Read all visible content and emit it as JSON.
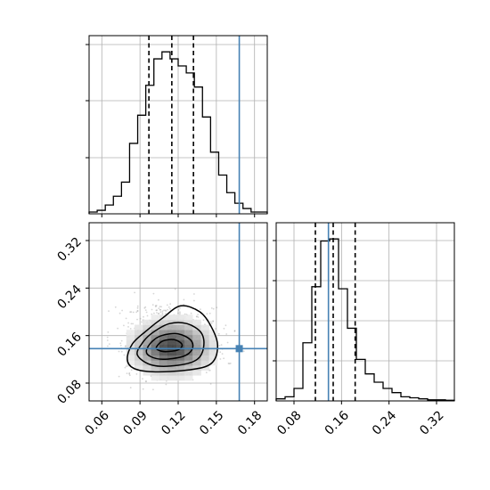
{
  "chart_data": {
    "type": "corner",
    "colors": {
      "truth": "#4682b4",
      "line": "#000000",
      "points": "#8a8a8a"
    },
    "truths": {
      "p0": 0.168,
      "p1": 0.138
    },
    "quantiles": {
      "p0": [
        0.097,
        0.115,
        0.132
      ],
      "p1": [
        0.116,
        0.146,
        0.183
      ]
    },
    "ticks": {
      "p0": [
        "0.06",
        "0.09",
        "0.12",
        "0.15",
        "0.18"
      ],
      "p1": [
        "0.08",
        "0.16",
        "0.24",
        "0.32"
      ]
    },
    "hist_p0": {
      "range": [
        0.05,
        0.19
      ],
      "counts": [
        1,
        2,
        5,
        10,
        18,
        40,
        56,
        73,
        88,
        92,
        88,
        84,
        80,
        72,
        55,
        35,
        22,
        12,
        6,
        3,
        1,
        1
      ]
    },
    "hist_p1": {
      "range": [
        0.05,
        0.35
      ],
      "counts": [
        1,
        2,
        6,
        28,
        55,
        77,
        78,
        54,
        35,
        20,
        13,
        9,
        6,
        4,
        2,
        1.5,
        1,
        0.5,
        0.5,
        0.3
      ]
    },
    "density": {
      "center": [
        0.115,
        0.14
      ],
      "contours": [
        [
          [
            0.08,
            0.12
          ],
          [
            0.084,
            0.146
          ],
          [
            0.095,
            0.168
          ],
          [
            0.108,
            0.19
          ],
          [
            0.122,
            0.21
          ],
          [
            0.137,
            0.2
          ],
          [
            0.146,
            0.175
          ],
          [
            0.151,
            0.143
          ],
          [
            0.146,
            0.113
          ],
          [
            0.128,
            0.102
          ],
          [
            0.1,
            0.099
          ],
          [
            0.085,
            0.105
          ]
        ],
        [
          [
            0.088,
            0.127
          ],
          [
            0.092,
            0.148
          ],
          [
            0.1,
            0.165
          ],
          [
            0.113,
            0.18
          ],
          [
            0.127,
            0.18
          ],
          [
            0.138,
            0.165
          ],
          [
            0.14,
            0.141
          ],
          [
            0.135,
            0.12
          ],
          [
            0.12,
            0.11
          ],
          [
            0.1,
            0.11
          ]
        ],
        [
          [
            0.095,
            0.134
          ],
          [
            0.099,
            0.149
          ],
          [
            0.107,
            0.16
          ],
          [
            0.12,
            0.163
          ],
          [
            0.13,
            0.152
          ],
          [
            0.131,
            0.137
          ],
          [
            0.124,
            0.125
          ],
          [
            0.108,
            0.12
          ],
          [
            0.098,
            0.125
          ]
        ],
        [
          [
            0.103,
            0.141
          ],
          [
            0.108,
            0.151
          ],
          [
            0.117,
            0.153
          ],
          [
            0.123,
            0.145
          ],
          [
            0.12,
            0.136
          ],
          [
            0.11,
            0.133
          ],
          [
            0.104,
            0.136
          ]
        ]
      ]
    }
  }
}
